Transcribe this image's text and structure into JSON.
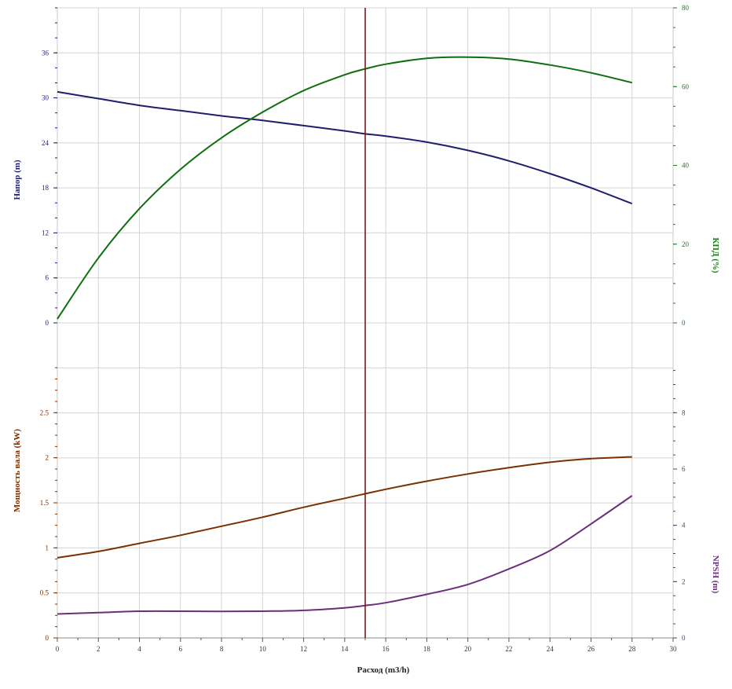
{
  "chart_data": {
    "type": "line",
    "x_axis": {
      "label": "Расход (m3/h)",
      "range": [
        0,
        30
      ],
      "ticks": [
        0,
        2,
        4,
        6,
        8,
        10,
        12,
        14,
        16,
        18,
        20,
        22,
        24,
        26,
        28,
        30
      ],
      "tick_labels": [
        "0",
        "2",
        "4",
        "6",
        "8",
        "10",
        "12",
        "14",
        "16",
        "18",
        "20",
        "22",
        "24",
        "26",
        "28",
        "30"
      ]
    },
    "panels": {
      "top": {
        "left_axis": {
          "label": "Напор (m)",
          "range": [
            0,
            42
          ],
          "ticks": [
            0,
            6,
            12,
            18,
            24,
            30,
            36
          ],
          "tick_labels": [
            "0",
            "6",
            "12",
            "18",
            "24",
            "30",
            "36"
          ],
          "color": "#1f1f6e"
        },
        "right_axis": {
          "label": "КПД (%)",
          "range": [
            0,
            80
          ],
          "ticks": [
            0,
            20,
            40,
            60,
            80
          ],
          "tick_labels": [
            "0",
            "20",
            "40",
            "60",
            "80"
          ],
          "color": "#1a7a1a"
        }
      },
      "bottom": {
        "left_axis": {
          "label": "Мощность вала (kW)",
          "range": [
            0,
            2.5
          ],
          "ticks": [
            0,
            0.5,
            1,
            1.5,
            2,
            2.5
          ],
          "tick_labels": [
            "0",
            "0.5",
            "1",
            "1.5",
            "2",
            "2.5"
          ],
          "color": "#7a3000"
        },
        "right_axis": {
          "label": "NPSH (m)",
          "range": [
            0,
            8
          ],
          "ticks": [
            0,
            2,
            4,
            6,
            8
          ],
          "tick_labels": [
            "0",
            "2",
            "4",
            "6",
            "8"
          ],
          "color": "#6b2f7a"
        }
      }
    },
    "series": [
      {
        "name": "Напор (m)",
        "panel": "top",
        "axis": "left",
        "color": "#1f1f6e",
        "x": [
          0,
          2,
          4,
          6,
          8,
          10,
          12,
          14,
          15,
          16,
          18,
          20,
          22,
          24,
          26,
          28
        ],
        "y": [
          30.8,
          29.9,
          29.0,
          28.3,
          27.6,
          27.0,
          26.3,
          25.6,
          25.2,
          24.9,
          24.1,
          23.0,
          21.6,
          19.9,
          18.0,
          15.9
        ]
      },
      {
        "name": "КПД (%)",
        "panel": "top",
        "axis": "right",
        "color": "#0f6f0f",
        "x": [
          0,
          2,
          4,
          6,
          8,
          10,
          12,
          14,
          15,
          16,
          18,
          20,
          22,
          24,
          26,
          28
        ],
        "y": [
          1.0,
          16.5,
          29.0,
          39.0,
          47.0,
          53.5,
          59.0,
          63.0,
          64.5,
          65.7,
          67.2,
          67.5,
          67.0,
          65.5,
          63.5,
          61.0
        ]
      },
      {
        "name": "Мощность вала (kW)",
        "panel": "bottom",
        "axis": "left",
        "color": "#7a3000",
        "x": [
          0,
          2,
          4,
          6,
          8,
          10,
          12,
          14,
          15,
          16,
          18,
          20,
          22,
          24,
          26,
          28
        ],
        "y": [
          0.89,
          0.96,
          1.05,
          1.14,
          1.24,
          1.34,
          1.45,
          1.55,
          1.6,
          1.65,
          1.74,
          1.82,
          1.89,
          1.95,
          1.99,
          2.01
        ]
      },
      {
        "name": "NPSH (m)",
        "panel": "bottom",
        "axis": "right",
        "color": "#6b2f7a",
        "x": [
          0,
          2,
          4,
          6,
          8,
          10,
          12,
          14,
          15,
          16,
          18,
          20,
          22,
          24,
          26,
          28
        ],
        "y": [
          0.85,
          0.9,
          0.95,
          0.95,
          0.94,
          0.95,
          0.98,
          1.07,
          1.15,
          1.25,
          1.55,
          1.9,
          2.45,
          3.1,
          4.05,
          5.05
        ]
      }
    ],
    "duty_point": {
      "x": 15,
      "color": "#7a1a1a"
    },
    "grid": true
  }
}
